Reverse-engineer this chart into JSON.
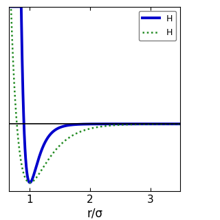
{
  "title": "",
  "xlabel": "r/σ",
  "ylabel": "",
  "xlim": [
    0.65,
    3.5
  ],
  "ylim": [
    -1.15,
    2.0
  ],
  "y_zero_line": 0,
  "curve1": {
    "label": "H",
    "color": "#0000cc",
    "linestyle": "solid",
    "linewidth": 2.8,
    "De": 1.0,
    "a": 7.0,
    "re": 1.0
  },
  "curve2": {
    "label": "H",
    "color": "#228B22",
    "linestyle": "dotted",
    "linewidth": 1.8,
    "De": 1.0,
    "a": 3.2,
    "re": 1.0
  },
  "xticks": [
    1,
    2,
    3
  ],
  "background_color": "#ffffff",
  "legend_loc": "upper right"
}
